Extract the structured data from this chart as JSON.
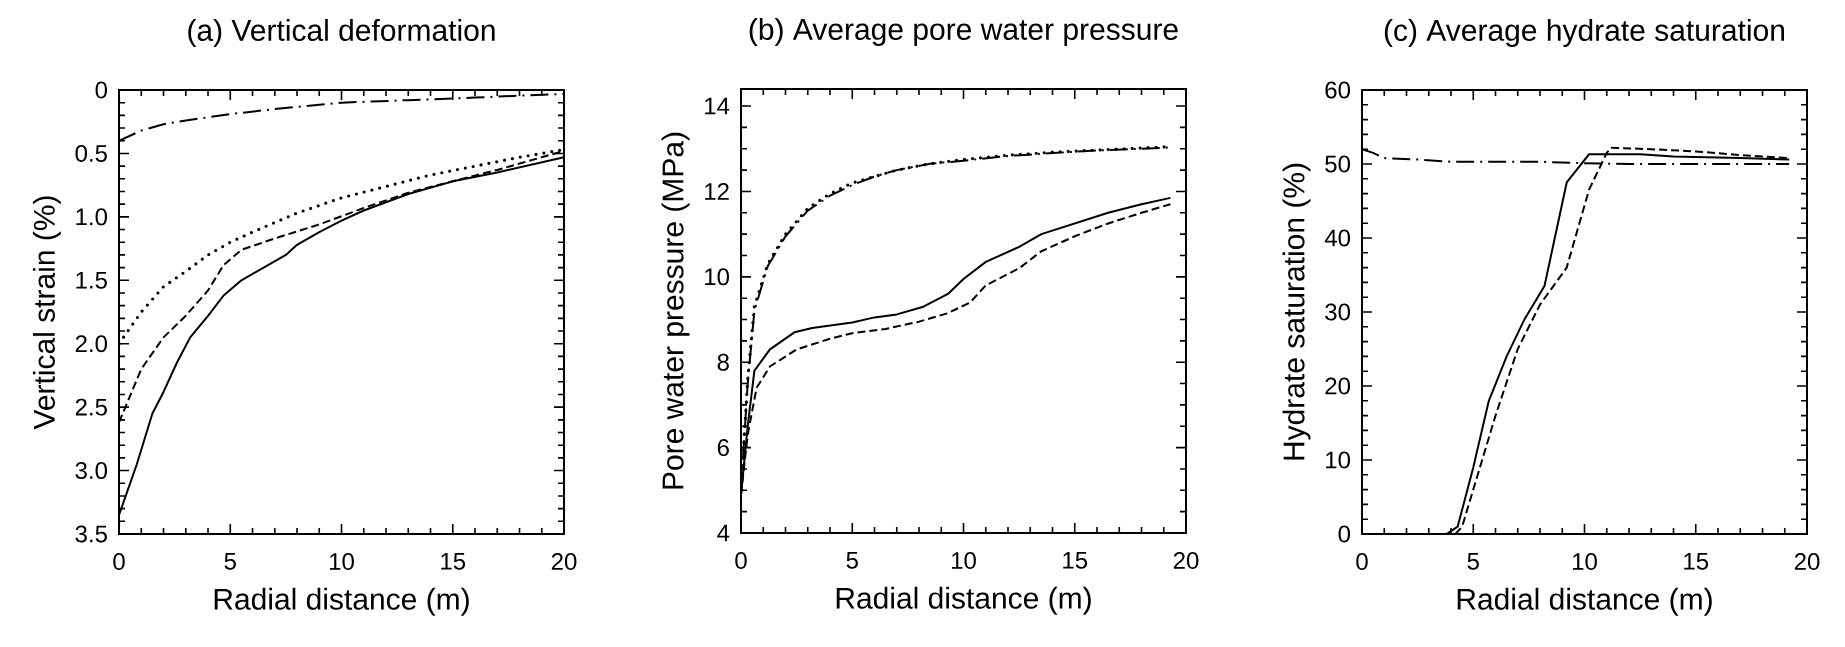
{
  "chart_data": [
    {
      "type": "line",
      "title": "(a) Vertical deformation",
      "xlabel": "Radial distance (m)",
      "ylabel": "Vertical strain  (%)",
      "xlim": [
        0,
        20
      ],
      "ylim": [
        3.5,
        0
      ],
      "xticks": [
        0,
        5,
        10,
        15,
        20
      ],
      "yticks": [
        0,
        0.5,
        {
          "value": 1,
          "label": "1.0"
        },
        1.5,
        {
          "value": 2,
          "label": "2.0"
        },
        2.5,
        {
          "value": 3,
          "label": "3.0"
        },
        3.5
      ],
      "series": [
        {
          "color": "#000000",
          "line_style": "solid",
          "x": [
            0,
            0.8,
            1.5,
            2,
            2.6,
            3.2,
            4,
            4.7,
            5.5,
            6.5,
            7.5,
            8,
            9,
            10,
            11,
            13,
            15,
            17,
            20
          ],
          "values": [
            3.35,
            2.95,
            2.55,
            2.38,
            2.15,
            1.95,
            1.78,
            1.62,
            1.5,
            1.4,
            1.3,
            1.22,
            1.12,
            1.03,
            0.95,
            0.82,
            0.72,
            0.65,
            0.53
          ]
        },
        {
          "color": "#000000",
          "line_style": "dashed",
          "x": [
            0,
            1,
            2,
            3,
            4,
            4.7,
            5.5,
            7,
            9,
            11,
            13,
            15,
            17,
            20
          ],
          "values": [
            2.62,
            2.2,
            1.95,
            1.78,
            1.58,
            1.38,
            1.26,
            1.17,
            1.06,
            0.93,
            0.81,
            0.72,
            0.63,
            0.48
          ]
        },
        {
          "color": "#000000",
          "line_style": "dotted",
          "x": [
            0,
            1,
            2,
            3,
            4,
            5,
            6,
            8,
            10,
            12,
            14,
            16,
            18,
            20
          ],
          "values": [
            2.0,
            1.75,
            1.55,
            1.43,
            1.3,
            1.2,
            1.12,
            0.97,
            0.85,
            0.76,
            0.67,
            0.6,
            0.53,
            0.47
          ]
        },
        {
          "color": "#000000",
          "line_style": "dashdot",
          "x": [
            0,
            1,
            2,
            3,
            5,
            7,
            10,
            13,
            16,
            20
          ],
          "values": [
            0.4,
            0.32,
            0.27,
            0.24,
            0.19,
            0.15,
            0.1,
            0.08,
            0.06,
            0.03
          ]
        }
      ]
    },
    {
      "type": "line",
      "title": "(b) Average pore water pressure",
      "xlabel": "Radial distance (m)",
      "ylabel": "Pore water pressure (MPa)",
      "xlim": [
        0,
        20
      ],
      "ylim": [
        4,
        14.4
      ],
      "xticks": [
        0,
        5,
        10,
        15,
        20
      ],
      "yticks": [
        4,
        6,
        8,
        10,
        12,
        14
      ],
      "series": [
        {
          "color": "#000000",
          "line_style": "solid",
          "x": [
            0,
            0.3,
            0.6,
            1.3,
            2.4,
            3.2,
            5,
            6,
            7,
            8.2,
            9.3,
            10,
            11,
            12.5,
            13.5,
            15,
            16.5,
            18,
            19.3
          ],
          "values": [
            4.9,
            6.5,
            7.8,
            8.3,
            8.7,
            8.8,
            8.93,
            9.05,
            9.12,
            9.3,
            9.6,
            9.95,
            10.35,
            10.7,
            11.0,
            11.25,
            11.5,
            11.7,
            11.85
          ]
        },
        {
          "color": "#000000",
          "line_style": "dashed",
          "x": [
            0,
            0.3,
            0.7,
            1.3,
            2.5,
            4,
            5,
            6.5,
            8,
            9.3,
            10.3,
            11,
            12.5,
            13.5,
            15,
            16.5,
            18,
            19.3
          ],
          "values": [
            4.9,
            6.3,
            7.4,
            7.9,
            8.3,
            8.55,
            8.68,
            8.78,
            8.95,
            9.15,
            9.4,
            9.8,
            10.2,
            10.6,
            10.95,
            11.25,
            11.5,
            11.7
          ]
        },
        {
          "color": "#000000",
          "line_style": "dotted",
          "x": [
            0,
            0.3,
            0.6,
            1.2,
            2,
            3,
            4,
            5,
            6,
            7,
            8.5,
            10,
            12,
            14,
            16,
            19.3
          ],
          "values": [
            5.0,
            7.6,
            9.3,
            10.3,
            11.0,
            11.6,
            11.95,
            12.2,
            12.35,
            12.5,
            12.65,
            12.75,
            12.85,
            12.92,
            12.97,
            13.05
          ]
        },
        {
          "color": "#000000",
          "line_style": "dashdot",
          "x": [
            0,
            0.3,
            0.6,
            1.2,
            2,
            3,
            4,
            5,
            6,
            7,
            8.5,
            10,
            12,
            14,
            16,
            19.3
          ],
          "values": [
            5.0,
            7.5,
            9.2,
            10.25,
            10.95,
            11.55,
            11.9,
            12.15,
            12.35,
            12.5,
            12.65,
            12.72,
            12.83,
            12.9,
            12.96,
            13.03
          ]
        }
      ]
    },
    {
      "type": "line",
      "title": "(c) Average hydrate saturation",
      "xlabel": "Radial distance (m)",
      "ylabel": "Hydrate saturation (%)",
      "xlim": [
        0,
        20
      ],
      "ylim": [
        0,
        60
      ],
      "xticks": [
        0,
        5,
        10,
        15,
        20
      ],
      "yticks": [
        0,
        10,
        20,
        30,
        40,
        50,
        60
      ],
      "series": [
        {
          "color": "#000000",
          "line_style": "solid",
          "x": [
            3.8,
            4.3,
            5,
            5.7,
            6.5,
            7.3,
            8.2,
            9.2,
            10.2,
            12.5,
            14,
            17,
            19.2
          ],
          "values": [
            0,
            1,
            9,
            18,
            24,
            29,
            33.5,
            47.5,
            51.3,
            51.3,
            51,
            50.8,
            50.6
          ]
        },
        {
          "color": "#000000",
          "line_style": "dashed",
          "x": [
            4.2,
            4.5,
            5.3,
            6,
            7,
            8,
            9.2,
            10.2,
            11,
            11.2,
            13,
            15,
            17,
            19.2
          ],
          "values": [
            0,
            1,
            9,
            16,
            25,
            31,
            36,
            46.5,
            51.5,
            52.2,
            52,
            51.7,
            51.2,
            50.8
          ]
        },
        {
          "color": "#000000",
          "line_style": "dashdot",
          "x": [
            0,
            0.5,
            1,
            2.5,
            4,
            8,
            10,
            12,
            19.2
          ],
          "values": [
            52,
            51.5,
            50.8,
            50.6,
            50.3,
            50.3,
            50.1,
            50,
            50
          ]
        }
      ]
    }
  ]
}
